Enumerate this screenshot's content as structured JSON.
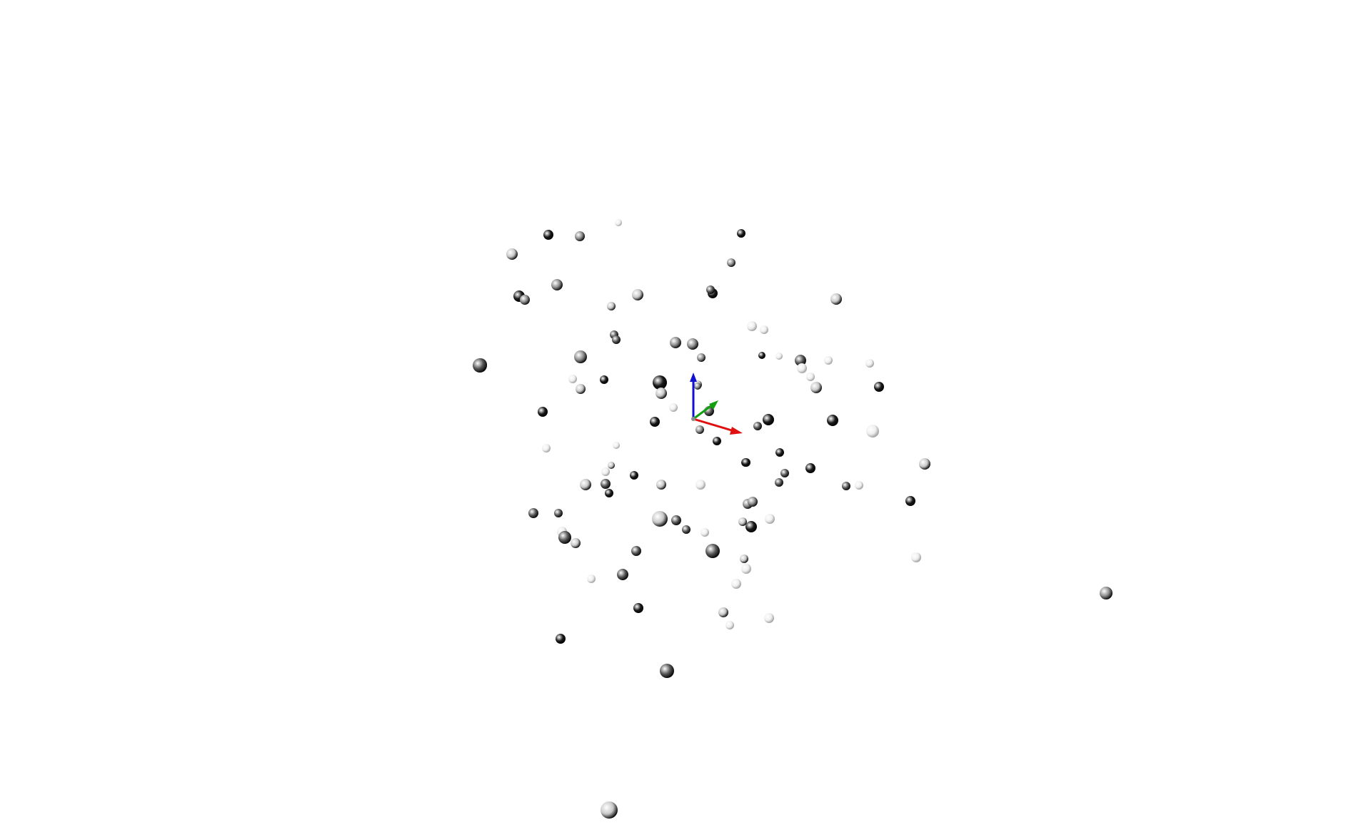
{
  "viewer": {
    "background": "#ffffff",
    "axes": {
      "x_color": "#e01010",
      "y_color": "#10a010",
      "z_color": "#1010d0"
    },
    "sphere_shades": [
      "#1a1a1a",
      "#555555",
      "#8c8c8c",
      "#c8c8c8",
      "#efefef"
    ],
    "points": [
      [
        768,
        329,
        7,
        0
      ],
      [
        812,
        331,
        7,
        2
      ],
      [
        866,
        312,
        5,
        4
      ],
      [
        717,
        356,
        8,
        3
      ],
      [
        1038,
        327,
        6,
        0
      ],
      [
        1024,
        368,
        6,
        2
      ],
      [
        727,
        415,
        8,
        0
      ],
      [
        780,
        399,
        8,
        2
      ],
      [
        893,
        413,
        8,
        3
      ],
      [
        735,
        420,
        7,
        2
      ],
      [
        856,
        429,
        6,
        3
      ],
      [
        998,
        411,
        7,
        0
      ],
      [
        995,
        406,
        6,
        1
      ],
      [
        1171,
        419,
        8,
        3
      ],
      [
        1070,
        462,
        6,
        4
      ],
      [
        860,
        469,
        6,
        1
      ],
      [
        863,
        476,
        6,
        1
      ],
      [
        946,
        480,
        8,
        2
      ],
      [
        970,
        482,
        8,
        2
      ],
      [
        1053,
        457,
        7,
        4
      ],
      [
        673,
        511,
        9,
        1
      ],
      [
        813,
        500,
        9,
        2
      ],
      [
        802,
        531,
        6,
        4
      ],
      [
        813,
        545,
        7,
        3
      ],
      [
        846,
        532,
        6,
        0
      ],
      [
        982,
        501,
        6,
        2
      ],
      [
        1067,
        498,
        5,
        0
      ],
      [
        1091,
        499,
        5,
        4
      ],
      [
        1121,
        505,
        8,
        1
      ],
      [
        1123,
        516,
        7,
        4
      ],
      [
        1135,
        528,
        6,
        4
      ],
      [
        1143,
        543,
        8,
        3
      ],
      [
        1160,
        505,
        6,
        4
      ],
      [
        1218,
        509,
        6,
        4
      ],
      [
        1231,
        542,
        7,
        0
      ],
      [
        924,
        536,
        10,
        0
      ],
      [
        926,
        551,
        8,
        3
      ],
      [
        943,
        571,
        6,
        4
      ],
      [
        977,
        539,
        6,
        3
      ],
      [
        977,
        541,
        5,
        2
      ],
      [
        993,
        576,
        7,
        1
      ],
      [
        760,
        577,
        7,
        0
      ],
      [
        1076,
        588,
        8,
        0
      ],
      [
        1166,
        589,
        8,
        0
      ],
      [
        917,
        591,
        7,
        0
      ],
      [
        1222,
        604,
        9,
        4
      ],
      [
        765,
        628,
        6,
        4
      ],
      [
        863,
        624,
        5,
        4
      ],
      [
        980,
        602,
        6,
        2
      ],
      [
        1061,
        597,
        6,
        1
      ],
      [
        1004,
        618,
        6,
        0
      ],
      [
        1044,
        648,
        6,
        0
      ],
      [
        1045,
        648,
        6,
        0
      ],
      [
        1092,
        634,
        6,
        0
      ],
      [
        1099,
        663,
        6,
        1
      ],
      [
        1091,
        676,
        6,
        1
      ],
      [
        1135,
        656,
        7,
        0
      ],
      [
        1185,
        681,
        6,
        1
      ],
      [
        1203,
        680,
        6,
        4
      ],
      [
        1295,
        650,
        8,
        3
      ],
      [
        856,
        652,
        5,
        3
      ],
      [
        848,
        661,
        6,
        4
      ],
      [
        820,
        679,
        8,
        3
      ],
      [
        848,
        678,
        7,
        1
      ],
      [
        853,
        691,
        6,
        0
      ],
      [
        888,
        666,
        6,
        0
      ],
      [
        926,
        679,
        7,
        3
      ],
      [
        981,
        679,
        7,
        4
      ],
      [
        1047,
        706,
        7,
        2
      ],
      [
        1054,
        703,
        7,
        2
      ],
      [
        1275,
        702,
        7,
        0
      ],
      [
        747,
        719,
        7,
        1
      ],
      [
        782,
        719,
        6,
        1
      ],
      [
        924,
        727,
        11,
        3
      ],
      [
        947,
        729,
        7,
        1
      ],
      [
        961,
        742,
        6,
        1
      ],
      [
        987,
        746,
        6,
        4
      ],
      [
        1040,
        731,
        6,
        3
      ],
      [
        1052,
        738,
        8,
        0
      ],
      [
        1078,
        727,
        7,
        4
      ],
      [
        787,
        745,
        7,
        4
      ],
      [
        791,
        753,
        9,
        1
      ],
      [
        806,
        761,
        7,
        3
      ],
      [
        891,
        772,
        7,
        1
      ],
      [
        998,
        772,
        10,
        1
      ],
      [
        1042,
        783,
        6,
        3
      ],
      [
        1045,
        797,
        7,
        4
      ],
      [
        1031,
        818,
        7,
        4
      ],
      [
        1283,
        781,
        7,
        4
      ],
      [
        828,
        811,
        6,
        4
      ],
      [
        872,
        805,
        8,
        1
      ],
      [
        894,
        852,
        7,
        0
      ],
      [
        1013,
        858,
        7,
        3
      ],
      [
        1022,
        876,
        6,
        4
      ],
      [
        1077,
        866,
        7,
        4
      ],
      [
        785,
        895,
        7,
        0
      ],
      [
        934,
        940,
        10,
        1
      ],
      [
        1549,
        831,
        9,
        2
      ],
      [
        853,
        1135,
        12,
        3
      ],
      [
        672,
        512,
        10,
        1
      ]
    ]
  }
}
